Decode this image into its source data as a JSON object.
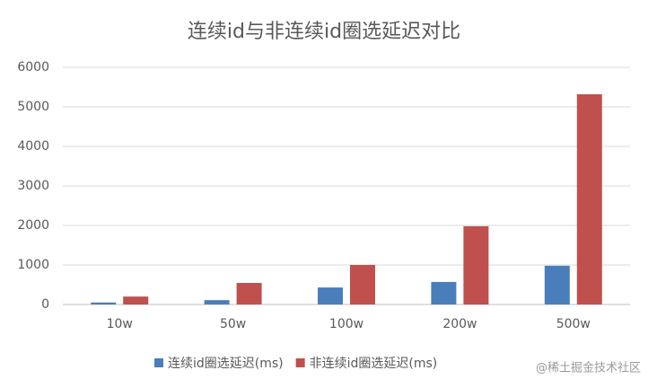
{
  "chart_data": {
    "type": "bar",
    "title": "连续id与非连续id圈选延迟对比",
    "categories": [
      "10w",
      "50w",
      "100w",
      "200w",
      "500w"
    ],
    "series": [
      {
        "name": "连续id圈选延迟(ms)",
        "color": "#4a7ebb",
        "values": [
          50,
          110,
          430,
          570,
          980
        ]
      },
      {
        "name": "非连续id圈选延迟(ms)",
        "color": "#c0504d",
        "values": [
          200,
          545,
          1000,
          1980,
          5320
        ]
      }
    ],
    "ylim": [
      0,
      6000
    ],
    "yticks": [
      0,
      1000,
      2000,
      3000,
      4000,
      5000,
      6000
    ],
    "grid": true,
    "legend": "bottom",
    "watermark": "@稀土掘金技术社区"
  }
}
